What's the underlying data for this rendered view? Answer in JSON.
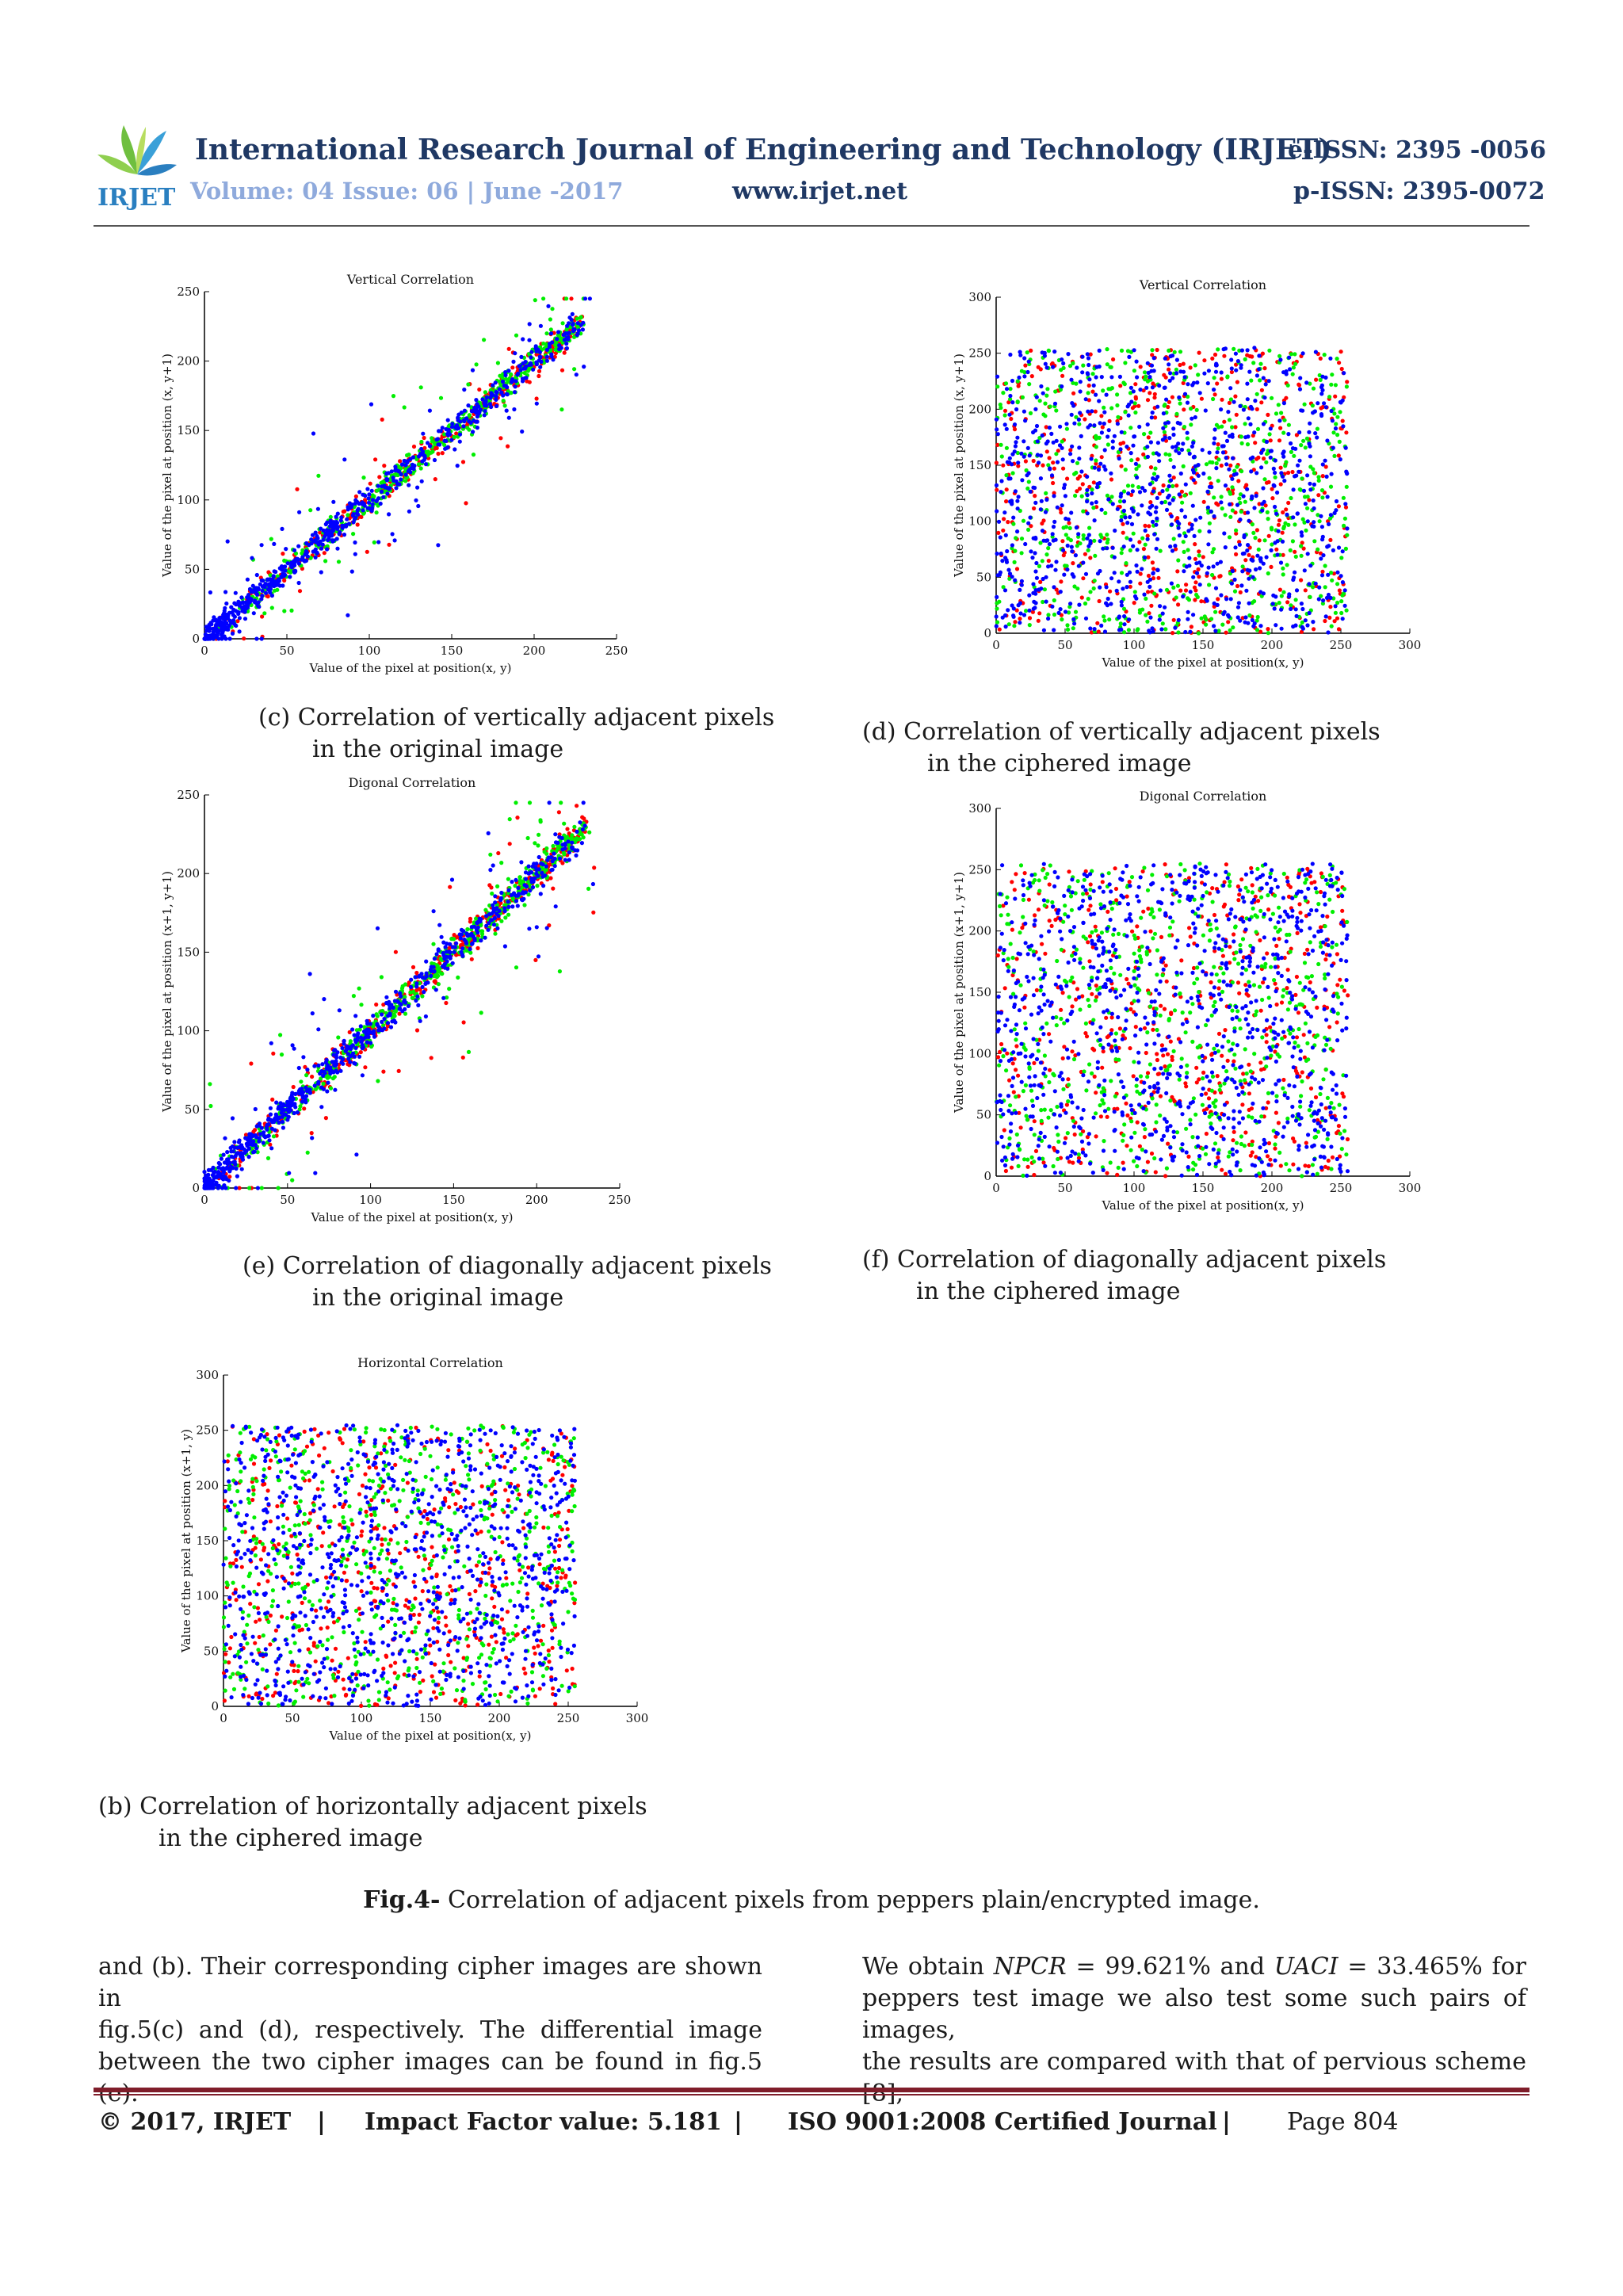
{
  "header": {
    "logo_text": "IRJET",
    "title": "International Research Journal of Engineering and Technology (IRJET)",
    "eissn": "e-ISSN: 2395 -0056",
    "volume": "Volume: 04 Issue: 06 | June -2017",
    "website": "www.irjet.net",
    "pissn": "p-ISSN: 2395-0072"
  },
  "figures": [
    {
      "id": "c",
      "caption_line1": "(c) Correlation of vertically adjacent pixels",
      "caption_line2": "in the original image"
    },
    {
      "id": "d",
      "caption_line1": "(d) Correlation of vertically adjacent pixels",
      "caption_line2": "in the ciphered image"
    },
    {
      "id": "e",
      "caption_line1": "(e) Correlation of diagonally adjacent pixels",
      "caption_line2": "in the original image"
    },
    {
      "id": "f",
      "caption_line1": "(f) Correlation of diagonally adjacent pixels",
      "caption_line2": "in the ciphered image"
    },
    {
      "id": "b",
      "caption_line1": "(b) Correlation of horizontally adjacent pixels",
      "caption_line2": "in the ciphered image"
    }
  ],
  "chart_data": [
    {
      "type": "scatter",
      "panel": "c",
      "title": "Vertical Correlation",
      "xlabel": "Value of the pixel at position(x, y)",
      "ylabel": "Value of the pixel at position (x, y+1)",
      "xlim": [
        0,
        250
      ],
      "ylim": [
        0,
        250
      ],
      "xticks": [
        0,
        50,
        100,
        150,
        200,
        250
      ],
      "yticks": [
        0,
        50,
        100,
        150,
        200,
        250
      ],
      "distribution": "correlated",
      "series": [
        {
          "name": "red channel",
          "color": "#ff0000",
          "approx_points": 350
        },
        {
          "name": "green channel",
          "color": "#00ee00",
          "approx_points": 450
        },
        {
          "name": "blue channel",
          "color": "#0000ff",
          "approx_points": 700
        }
      ]
    },
    {
      "type": "scatter",
      "panel": "d",
      "title": "Vertical Correlation",
      "xlabel": "Value of the pixel at position(x, y)",
      "ylabel": "Value of the pixel at position (x, y+1)",
      "xlim": [
        0,
        300
      ],
      "ylim": [
        0,
        300
      ],
      "xticks": [
        0,
        50,
        100,
        150,
        200,
        250,
        300
      ],
      "yticks": [
        0,
        50,
        100,
        150,
        200,
        250,
        300
      ],
      "distribution": "uniform 0-255",
      "series": [
        {
          "name": "red channel",
          "color": "#ff0000",
          "approx_points": 500
        },
        {
          "name": "green channel",
          "color": "#00ee00",
          "approx_points": 600
        },
        {
          "name": "blue channel",
          "color": "#0000ff",
          "approx_points": 900
        }
      ]
    },
    {
      "type": "scatter",
      "panel": "e",
      "title": "Digonal Correlation",
      "xlabel": "Value of the pixel at position(x, y)",
      "ylabel": "Value of the pixel at position (x+1, y+1)",
      "xlim": [
        0,
        250
      ],
      "ylim": [
        0,
        250
      ],
      "xticks": [
        0,
        50,
        100,
        150,
        200,
        250
      ],
      "yticks": [
        0,
        50,
        100,
        150,
        200,
        250
      ],
      "distribution": "correlated",
      "series": [
        {
          "name": "red channel",
          "color": "#ff0000",
          "approx_points": 400
        },
        {
          "name": "green channel",
          "color": "#00ee00",
          "approx_points": 500
        },
        {
          "name": "blue channel",
          "color": "#0000ff",
          "approx_points": 700
        }
      ]
    },
    {
      "type": "scatter",
      "panel": "f",
      "title": "Digonal Correlation",
      "xlabel": "Value of the pixel at position(x, y)",
      "ylabel": "Value of the pixel at position (x+1, y+1)",
      "xlim": [
        0,
        300
      ],
      "ylim": [
        0,
        300
      ],
      "xticks": [
        0,
        50,
        100,
        150,
        200,
        250,
        300
      ],
      "yticks": [
        0,
        50,
        100,
        150,
        200,
        250,
        300
      ],
      "distribution": "uniform 0-255",
      "series": [
        {
          "name": "red channel",
          "color": "#ff0000",
          "approx_points": 500
        },
        {
          "name": "green channel",
          "color": "#00ee00",
          "approx_points": 600
        },
        {
          "name": "blue channel",
          "color": "#0000ff",
          "approx_points": 900
        }
      ]
    },
    {
      "type": "scatter",
      "panel": "b",
      "title": "Horizontal Correlation",
      "xlabel": "Value of the pixel at position(x, y)",
      "ylabel": "Value of the pixel at position (x+1, y)",
      "xlim": [
        0,
        300
      ],
      "ylim": [
        0,
        300
      ],
      "xticks": [
        0,
        50,
        100,
        150,
        200,
        250,
        300
      ],
      "yticks": [
        0,
        50,
        100,
        150,
        200,
        250,
        300
      ],
      "distribution": "uniform 0-255",
      "series": [
        {
          "name": "red channel",
          "color": "#ff0000",
          "approx_points": 500
        },
        {
          "name": "green channel",
          "color": "#00ee00",
          "approx_points": 600
        },
        {
          "name": "blue channel",
          "color": "#0000ff",
          "approx_points": 900
        }
      ]
    }
  ],
  "fig_caption": {
    "label": "Fig.4-",
    "text": " Correlation of adjacent pixels from peppers plain/encrypted image."
  },
  "body": {
    "left_lines": [
      "and (b). Their corresponding cipher images are shown in",
      "fig.5(c)  and  (d),  respectively.  The  differential  image",
      "between the two cipher images can be found in fig.5 (e)."
    ],
    "right_line1_prefix": "We  obtain  ",
    "npcr_label": "NPCR",
    "npcr_value": " = 99.621% and ",
    "uaci_label": "UACI",
    "uaci_value": " = 33.465% for",
    "right_lines_rest": [
      "peppers test image we also test some such pairs of images,",
      "the results are compared with that of pervious scheme [8],"
    ]
  },
  "footer": {
    "copyright": "© 2017, IRJET",
    "sep": "|",
    "impact": "Impact Factor value: 5.181",
    "iso": "ISO 9001:2008 Certified Journal",
    "page": "Page 804"
  }
}
